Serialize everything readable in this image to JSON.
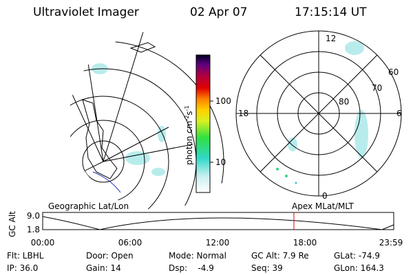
{
  "header": {
    "title": "Ultraviolet Imager",
    "date": "02 Apr 07",
    "time": "17:15:14 UT"
  },
  "colorbar": {
    "unit_1": "photon cm",
    "exp_1": "-2",
    "unit_2": "s",
    "exp_2": "-1",
    "ticks": [
      "100",
      "10"
    ]
  },
  "left_panel": {
    "label": "Geographic Lat/Lon"
  },
  "right_panel": {
    "label": "Apex MLat/MLT",
    "mlt_labels": [
      "12",
      "6",
      "0",
      "18"
    ],
    "lat_labels": [
      "60",
      "70",
      "80"
    ]
  },
  "altitude_plot": {
    "y_label": "GC Alt",
    "yticks": [
      "9.0",
      "1.8"
    ],
    "xticks": [
      "00:00",
      "06:00",
      "12:00",
      "18:00",
      "23:59"
    ]
  },
  "info": {
    "rows": [
      [
        "Flt: LBHL",
        "Door: Open",
        "Mode: Normal",
        "GC Alt: 7.9 Re",
        "GLat: -74.9"
      ],
      [
        "IP: 36.0",
        "Gain: 14",
        "Dsp:    -4.9",
        "Seq: 39",
        "GLon: 164.3"
      ]
    ]
  }
}
